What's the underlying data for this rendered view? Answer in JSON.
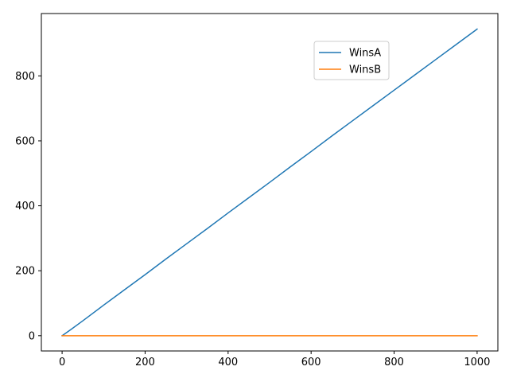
{
  "chart_data": {
    "type": "line",
    "title": "",
    "xlabel": "",
    "ylabel": "",
    "xlim": [
      -50,
      1050
    ],
    "ylim": [
      -47,
      992
    ],
    "xticks": [
      0,
      200,
      400,
      600,
      800,
      1000
    ],
    "yticks": [
      0,
      200,
      400,
      600,
      800
    ],
    "grid": false,
    "legend": {
      "placement": "upper-right-inset"
    },
    "series": [
      {
        "name": "WinsA",
        "color": "#1f77b4",
        "x": [
          0,
          20,
          50,
          100,
          150,
          200,
          250,
          300,
          350,
          400,
          450,
          500,
          550,
          600,
          650,
          700,
          750,
          800,
          850,
          900,
          950,
          1000
        ],
        "y": [
          0,
          18,
          46,
          94,
          141,
          188,
          236,
          283,
          330,
          378,
          425,
          472,
          520,
          567,
          615,
          662,
          709,
          756,
          803,
          850,
          897,
          944
        ]
      },
      {
        "name": "WinsB",
        "color": "#ff7f0e",
        "x": [
          0,
          1000
        ],
        "y": [
          0,
          0
        ]
      }
    ]
  }
}
